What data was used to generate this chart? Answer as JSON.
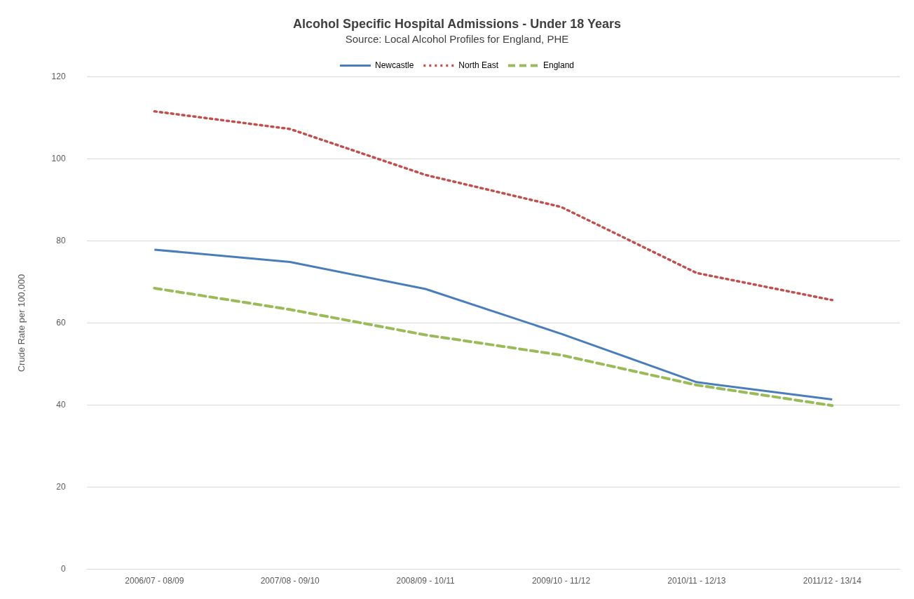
{
  "chart_data": {
    "type": "line",
    "title": "Alcohol Specific Hospital Admissions - Under 18 Years",
    "subtitle": "Source: Local Alcohol Profiles for England, PHE",
    "ylabel": "Crude Rate per 100,000",
    "categories": [
      "2006/07 - 08/09",
      "2007/08 - 09/10",
      "2008/09 - 10/11",
      "2009/10 - 11/12",
      "2010/11 - 12/13",
      "2011/12 - 13/14"
    ],
    "series": [
      {
        "name": "Newcastle",
        "color": "#4a7ebb",
        "line_style": "solid",
        "values": [
          77.9,
          74.9,
          68.3,
          57.4,
          45.6,
          41.4
        ]
      },
      {
        "name": "North East",
        "color": "#c0504d",
        "line_style": "dotted",
        "values": [
          111.6,
          107.3,
          96.1,
          88.3,
          72.2,
          65.6
        ]
      },
      {
        "name": "England",
        "color": "#9bbb59",
        "line_style": "dashed",
        "values": [
          68.5,
          63.3,
          57.1,
          52.2,
          44.9,
          39.9
        ]
      }
    ],
    "ylim": [
      0,
      120
    ],
    "yticks": [
      0,
      20,
      40,
      60,
      80,
      100,
      120
    ],
    "grid": "y",
    "legend": "top",
    "marker": "none"
  }
}
